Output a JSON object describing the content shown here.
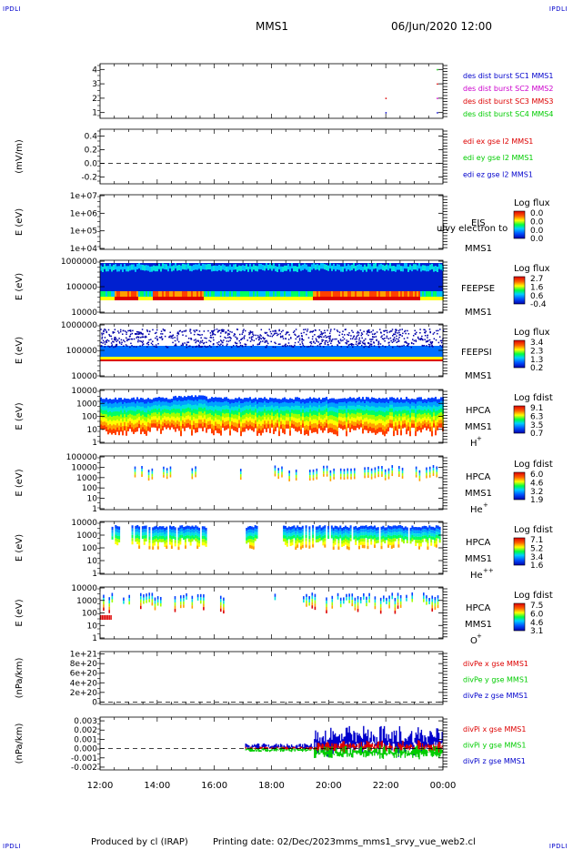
{
  "corners": {
    "tl": "IPDLI",
    "tr": "IPDLI",
    "bl": "IPDLI",
    "br": "IPDLI"
  },
  "header": {
    "mission": "MMS1",
    "datetime": "06/Jun/2020 12:00"
  },
  "footer": {
    "produced_by": "Produced by cl (IRAP)",
    "printing_date": "Printing date: 02/Dec/2023",
    "filename": "mms_mms1_srvy_vue_web2.cl"
  },
  "colors": {
    "red": "#dd0000",
    "green": "#00cc00",
    "blue": "#0000cc",
    "magenta": "#cc00cc",
    "black": "#000000"
  },
  "chart_data": [
    {
      "id": "burst",
      "type": "scatter",
      "yticks": [
        "1",
        "2",
        "3",
        "4"
      ],
      "ylim": [
        0.6,
        4.4
      ],
      "ylabel": "",
      "legend": [
        {
          "text": "des dist burst SC1 MMS1",
          "color": "#0000cc"
        },
        {
          "text": "des dist burst SC2 MMS2",
          "color": "#cc00cc"
        },
        {
          "text": "des dist burst SC3 MMS3",
          "color": "#dd0000"
        },
        {
          "text": "des dist burst SC4 MMS4",
          "color": "#00cc00"
        }
      ],
      "points": [
        {
          "x": 22.0,
          "y": 2.0,
          "color": "#dd0000"
        },
        {
          "x": 22.0,
          "y": 1.0,
          "color": "#0000cc"
        },
        {
          "x": 23.8,
          "y": 4.0,
          "color": "#00cc00"
        },
        {
          "x": 23.8,
          "y": 3.0,
          "color": "#dd0000"
        },
        {
          "x": 23.8,
          "y": 2.0,
          "color": "#cc00cc"
        },
        {
          "x": 23.8,
          "y": 1.0,
          "color": "#0000cc"
        }
      ]
    },
    {
      "id": "edi",
      "type": "line",
      "yticks": [
        "-0.2",
        "0.0",
        "0.2",
        "0.4"
      ],
      "ylim": [
        -0.3,
        0.5
      ],
      "ylabel": "(mV/m)",
      "zero_line": true,
      "legend": [
        {
          "text": "edi ex gse l2 MMS1",
          "color": "#dd0000"
        },
        {
          "text": "edi ey gse l2 MMS1",
          "color": "#00cc00"
        },
        {
          "text": "edi ez gse l2 MMS1",
          "color": "#0000cc"
        }
      ]
    },
    {
      "id": "eis",
      "type": "heatmap",
      "yticks": [
        "1e+04",
        "1e+05",
        "1e+06",
        "1e+07"
      ],
      "ylabel": "E (eV)",
      "labels": [
        "EIS",
        "MMS1"
      ],
      "overlay_text": "ulvy electron to",
      "colorbar": {
        "title": "Log flux",
        "ticks": [
          "0.0",
          "0.0",
          "0.0",
          "0.0"
        ]
      },
      "fill": "none"
    },
    {
      "id": "feepse",
      "type": "heatmap",
      "yticks": [
        "10000",
        "100000",
        "1000000"
      ],
      "ylabel": "E (eV)",
      "labels": [
        "FEEPSE",
        "MMS1"
      ],
      "colorbar": {
        "title": "Log flux",
        "ticks": [
          "2.7",
          "1.6",
          "0.6",
          "-0.4"
        ]
      },
      "fill": "feeps_e"
    },
    {
      "id": "feepsi",
      "type": "heatmap",
      "yticks": [
        "10000",
        "100000",
        "1000000"
      ],
      "ylabel": "E (eV)",
      "labels": [
        "FEEPSI",
        "MMS1"
      ],
      "colorbar": {
        "title": "Log flux",
        "ticks": [
          "3.4",
          "2.3",
          "1.3",
          "0.2"
        ]
      },
      "fill": "feeps_i"
    },
    {
      "id": "hpca_h",
      "type": "heatmap",
      "yticks": [
        "1",
        "10",
        "100",
        "1000",
        "10000"
      ],
      "ylabel": "E (eV)",
      "labels": [
        "HPCA",
        "MMS1"
      ],
      "species": {
        "base": "H",
        "sup": "+"
      },
      "colorbar": {
        "title": "Log fdist",
        "ticks": [
          "9.1",
          "6.3",
          "3.5",
          "0.7"
        ]
      },
      "fill": "hpca_h"
    },
    {
      "id": "hpca_he1",
      "type": "heatmap",
      "yticks": [
        "1",
        "10",
        "100",
        "1000",
        "10000",
        "100000"
      ],
      "ylabel": "E (eV)",
      "labels": [
        "HPCA",
        "MMS1"
      ],
      "species": {
        "base": "He",
        "sup": "+"
      },
      "colorbar": {
        "title": "Log fdist",
        "ticks": [
          "6.0",
          "4.6",
          "3.2",
          "1.9"
        ]
      },
      "fill": "hpca_he1"
    },
    {
      "id": "hpca_he2",
      "type": "heatmap",
      "yticks": [
        "1",
        "10",
        "100",
        "1000",
        "10000"
      ],
      "ylabel": "E (eV)",
      "labels": [
        "HPCA",
        "MMS1"
      ],
      "species": {
        "base": "He",
        "sup": "++"
      },
      "colorbar": {
        "title": "Log fdist",
        "ticks": [
          "7.1",
          "5.2",
          "3.4",
          "1.6"
        ]
      },
      "fill": "hpca_he2"
    },
    {
      "id": "hpca_o",
      "type": "heatmap",
      "yticks": [
        "1",
        "10",
        "100",
        "1000",
        "10000"
      ],
      "ylabel": "E (eV)",
      "labels": [
        "HPCA",
        "MMS1"
      ],
      "species": {
        "base": "O",
        "sup": "+"
      },
      "colorbar": {
        "title": "Log fdist",
        "ticks": [
          "7.5",
          "6.0",
          "4.6",
          "3.1"
        ]
      },
      "fill": "hpca_o"
    },
    {
      "id": "divpe",
      "type": "line",
      "yticks": [
        "0",
        "2e+20",
        "4e+20",
        "6e+20",
        "8e+20",
        "1e+21"
      ],
      "ylim": [
        -5e+19,
        1.05e+21
      ],
      "ylabel": "(nPa/km)",
      "zero_line": true,
      "legend": [
        {
          "text": "divPe x gse MMS1",
          "color": "#dd0000"
        },
        {
          "text": "divPe y gse MMS1",
          "color": "#00cc00"
        },
        {
          "text": "divPe z gse MMS1",
          "color": "#0000cc"
        }
      ]
    },
    {
      "id": "divpi",
      "type": "line",
      "yticks": [
        "-0.002",
        "-0.001",
        "0.000",
        "0.001",
        "0.002",
        "0.003"
      ],
      "ylim": [
        -0.0023,
        0.0034
      ],
      "ylabel": "(nPa/km)",
      "zero_line": true,
      "legend": [
        {
          "text": "divPi x gse MMS1",
          "color": "#dd0000"
        },
        {
          "text": "divPi y gse MMS1",
          "color": "#00cc00"
        },
        {
          "text": "divPi z gse MMS1",
          "color": "#0000cc"
        }
      ],
      "series": [
        {
          "name": "divPi z gse MMS1",
          "color": "#0000cc",
          "start": 17.1,
          "quiet_amp": 0.0004,
          "active_from": 19.5,
          "active_amp": 0.0022,
          "center": 0.0008
        },
        {
          "name": "divPi x gse MMS1",
          "color": "#dd0000",
          "start": 17.1,
          "quiet_amp": 0.0002,
          "active_from": 19.5,
          "active_amp": 0.0009,
          "center": 0.0002
        },
        {
          "name": "divPi y gse MMS1",
          "color": "#00cc00",
          "start": 17.1,
          "quiet_amp": 0.0003,
          "active_from": 19.5,
          "active_amp": 0.001,
          "center": -0.0004
        }
      ]
    }
  ],
  "time_axis": {
    "ticks": [
      "12:00",
      "14:00",
      "16:00",
      "18:00",
      "20:00",
      "22:00",
      "00:00"
    ],
    "values": [
      12,
      14,
      16,
      18,
      20,
      22,
      24
    ],
    "range": [
      12,
      24
    ]
  }
}
